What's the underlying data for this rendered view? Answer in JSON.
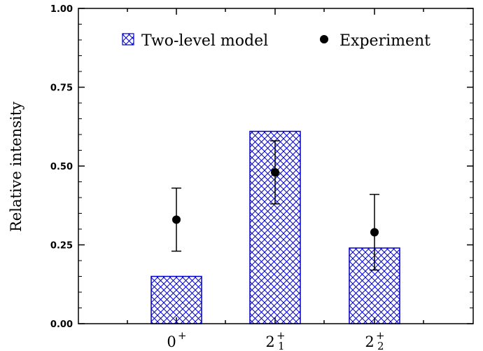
{
  "chart_data": {
    "type": "bar",
    "ylabel": "Relative intensity",
    "ylim": [
      0,
      1.0
    ],
    "yticks": [
      "0.00",
      "0.25",
      "0.50",
      "0.75",
      "1.00"
    ],
    "categories": [
      {
        "base": "0",
        "sup": "+",
        "sub": ""
      },
      {
        "base": "2",
        "sup": "+",
        "sub": "1"
      },
      {
        "base": "2",
        "sup": "+",
        "sub": "2"
      }
    ],
    "series": [
      {
        "name": "Two-level model",
        "kind": "bar",
        "color": "#0000cc",
        "pattern": "crosshatch",
        "values": [
          0.15,
          0.61,
          0.24
        ]
      },
      {
        "name": "Experiment",
        "kind": "points",
        "color": "#000000",
        "values": [
          0.33,
          0.48,
          0.29
        ],
        "errors": [
          0.1,
          0.1,
          0.12
        ]
      }
    ],
    "legend_position": "top",
    "grid": false
  }
}
